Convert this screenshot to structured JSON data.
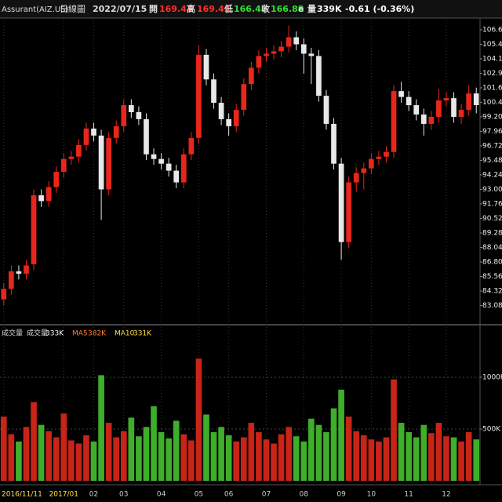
{
  "header": {
    "symbol": "Assurant(AIZ.US)",
    "period": "日線圖",
    "date": "2022/07/15",
    "open_label": "開",
    "open": "169.43",
    "high_label": "高",
    "high": "169.43",
    "low_label": "低",
    "low": "166.45",
    "close_label": "收",
    "close": "166.88",
    "flag": "e",
    "volume_label": "量",
    "volume": "339K",
    "change": "-0.61 (-0.36%)"
  },
  "volume_legend": {
    "title": "成交量",
    "vol_label": "成交量",
    "vol": "333K",
    "ma5_label": "MA5",
    "ma5": "382K",
    "ma10_label": "MA10",
    "ma10": "331K"
  },
  "chart_data": [
    {
      "type": "candlestick",
      "categories": [
        "2016/11/11",
        null,
        null,
        null,
        null,
        null,
        null,
        null,
        "2017/01",
        null,
        null,
        null,
        "02",
        null,
        null,
        null,
        "03",
        null,
        null,
        null,
        null,
        "04",
        null,
        null,
        null,
        null,
        "05",
        null,
        null,
        null,
        "06",
        null,
        null,
        null,
        null,
        "07",
        null,
        null,
        null,
        null,
        "08",
        null,
        null,
        null,
        null,
        "09",
        null,
        null,
        null,
        "10",
        null,
        null,
        null,
        null,
        "11",
        null,
        null,
        null,
        null,
        "12",
        null,
        null,
        null,
        null
      ],
      "open": [
        83.6,
        84.5,
        86.0,
        85.8,
        86.6,
        92.5,
        92.0,
        93.2,
        94.5,
        95.6,
        95.8,
        96.8,
        98.2,
        97.6,
        93.0,
        97.4,
        98.4,
        100.2,
        99.6,
        99.0,
        96.0,
        95.6,
        95.2,
        94.6,
        93.6,
        96.0,
        97.4,
        104.5,
        102.4,
        100.4,
        99.0,
        98.4,
        99.8,
        102.0,
        103.4,
        104.4,
        104.6,
        104.8,
        105.2,
        106.0,
        105.4,
        104.6,
        104.4,
        101.0,
        98.6,
        95.2,
        88.5,
        93.6,
        94.4,
        94.8,
        95.6,
        95.8,
        96.2,
        101.4,
        100.9,
        100.2,
        99.4,
        98.6,
        99.2,
        100.6,
        100.8,
        99.2,
        99.8,
        101.2
      ],
      "high": [
        85.0,
        86.5,
        86.5,
        87.0,
        93.0,
        93.0,
        93.7,
        95.0,
        96.1,
        96.3,
        97.3,
        98.7,
        98.7,
        98.1,
        97.9,
        98.9,
        100.7,
        100.7,
        100.1,
        99.5,
        96.5,
        96.1,
        95.7,
        95.1,
        96.5,
        97.9,
        105.3,
        105.0,
        102.9,
        100.9,
        99.5,
        100.3,
        102.5,
        103.9,
        104.9,
        105.1,
        105.3,
        105.7,
        107.0,
        106.5,
        105.9,
        105.1,
        104.9,
        101.5,
        99.1,
        95.7,
        94.1,
        94.9,
        95.3,
        96.1,
        96.3,
        96.7,
        101.9,
        102.2,
        101.4,
        100.7,
        99.9,
        99.7,
        101.6,
        101.3,
        101.3,
        100.3,
        101.9,
        101.7
      ],
      "low": [
        83.1,
        84.0,
        85.3,
        85.3,
        86.1,
        91.5,
        91.5,
        92.7,
        94.0,
        95.1,
        95.3,
        96.3,
        97.1,
        90.4,
        92.5,
        96.9,
        97.9,
        99.1,
        98.5,
        95.5,
        95.1,
        94.7,
        94.1,
        93.1,
        93.1,
        95.5,
        96.9,
        101.9,
        99.9,
        98.5,
        97.6,
        97.9,
        99.3,
        101.5,
        102.9,
        103.9,
        104.1,
        104.3,
        104.7,
        104.9,
        102.9,
        102.0,
        100.5,
        98.1,
        94.7,
        87.0,
        88.0,
        92.8,
        93.0,
        94.3,
        95.1,
        95.3,
        95.7,
        100.4,
        99.7,
        98.9,
        97.6,
        98.1,
        98.7,
        100.1,
        98.7,
        98.6,
        99.3,
        99.5
      ],
      "close": [
        84.5,
        86.0,
        85.8,
        86.5,
        92.5,
        92.0,
        93.2,
        94.5,
        95.6,
        95.8,
        96.8,
        98.2,
        97.6,
        93.0,
        97.4,
        98.4,
        100.2,
        99.6,
        99.0,
        96.0,
        95.6,
        95.2,
        94.6,
        93.6,
        96.0,
        97.4,
        104.5,
        102.4,
        100.4,
        99.0,
        98.4,
        99.8,
        102.0,
        103.4,
        104.4,
        104.6,
        104.8,
        105.2,
        106.0,
        105.4,
        104.6,
        104.4,
        101.0,
        98.6,
        95.2,
        88.5,
        93.6,
        94.4,
        94.8,
        95.6,
        95.8,
        96.2,
        101.4,
        100.9,
        100.2,
        99.4,
        98.6,
        99.2,
        100.6,
        100.8,
        99.2,
        99.8,
        101.2,
        100.2
      ],
      "up_color": "#e8261c",
      "down_color": "#e8e8e8",
      "ylim": [
        81.57,
        107.51
      ],
      "yticks": [
        106.64,
        {
          "value": 105.4,
          "label": "105.40"
        },
        104.16,
        102.92,
        101.68,
        100.44,
        {
          "value": 99.2,
          "label": "99.20"
        },
        97.96,
        96.72,
        95.48,
        94.24,
        {
          "value": 93.0,
          "label": "93.00"
        },
        91.76,
        90.52,
        89.28,
        88.04,
        {
          "value": 86.8,
          "label": "86.80"
        },
        85.56,
        84.32,
        83.08
      ]
    },
    {
      "type": "bar",
      "values": [
        620,
        450,
        380,
        520,
        760,
        540,
        480,
        420,
        650,
        390,
        360,
        440,
        380,
        1020,
        560,
        420,
        480,
        610,
        430,
        520,
        720,
        470,
        410,
        580,
        450,
        390,
        1180,
        640,
        470,
        520,
        440,
        380,
        420,
        560,
        470,
        400,
        360,
        450,
        520,
        430,
        380,
        600,
        540,
        470,
        700,
        880,
        620,
        480,
        440,
        400,
        380,
        420,
        980,
        560,
        470,
        420,
        540,
        460,
        560,
        430,
        420,
        380,
        470,
        400
      ],
      "up_color": "#c82418",
      "down_color": "#3fae2a",
      "ylim": [
        0,
        1477
      ],
      "yticks": [
        {
          "value": 1000,
          "label": "1000K"
        },
        {
          "value": 500,
          "label": "500K"
        }
      ]
    }
  ]
}
